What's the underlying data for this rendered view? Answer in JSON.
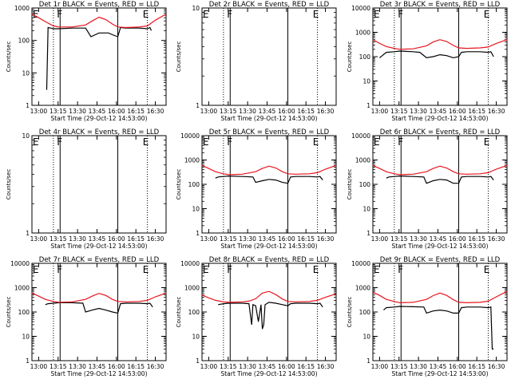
{
  "figure": {
    "x_tick_labels": [
      "13:00",
      "13:15",
      "13:30",
      "13:45",
      "16:00",
      "16:15",
      "16:30"
    ],
    "x_label": "Start Time (29-Oct-12 14:53:00)",
    "y_label": "Counts/sec",
    "colors": {
      "events": "#000000",
      "lld": "#e8141e",
      "axes": "#000000"
    }
  },
  "chart_data": [
    {
      "type": "line",
      "title": "Det 1r BLACK = Events, RED = LLD",
      "ylim": [
        1,
        1000
      ],
      "yticks": [
        1,
        10,
        100,
        1000
      ],
      "ytick_labels": [
        "1",
        "10",
        "100",
        "1000"
      ],
      "x_tick_labels": [
        "13:00",
        "13:15",
        "13:30",
        "13:45",
        "16:00",
        "16:15",
        "16:30"
      ],
      "xlabel": "Start Time (29-Oct-12 14:53:00)",
      "ylabel": "Counts/sec",
      "annotations": [
        {
          "text": "E",
          "x": 0.0
        },
        {
          "text": "F",
          "x": 0.18
        },
        {
          "text": "E",
          "x": 0.82
        }
      ],
      "vlines": {
        "dotted": [
          0.16,
          0.86
        ],
        "solid": [
          0.21,
          0.64
        ]
      },
      "series": [
        {
          "name": "Events",
          "color": "#000000",
          "x": [
            0.1,
            0.11,
            0.12,
            0.14,
            0.16,
            0.2,
            0.3,
            0.4,
            0.44,
            0.5,
            0.57,
            0.6,
            0.64,
            0.66,
            0.7,
            0.8,
            0.86,
            0.88,
            0.89
          ],
          "y": [
            null,
            3,
            250,
            240,
            230,
            230,
            240,
            240,
            130,
            170,
            170,
            150,
            130,
            250,
            240,
            240,
            230,
            250,
            200
          ]
        },
        {
          "name": "LLD",
          "color": "#e8141e",
          "x": [
            0.0,
            0.05,
            0.1,
            0.16,
            0.2,
            0.3,
            0.4,
            0.45,
            0.5,
            0.55,
            0.6,
            0.64,
            0.7,
            0.8,
            0.86,
            0.92,
            1.0
          ],
          "y": [
            650,
            500,
            380,
            280,
            260,
            260,
            300,
            400,
            520,
            440,
            320,
            260,
            250,
            260,
            280,
            420,
            650
          ]
        }
      ]
    },
    {
      "type": "line",
      "title": "Det 2r BLACK = Events, RED = LLD",
      "ylim": [
        1,
        10
      ],
      "yticks": [
        1,
        10
      ],
      "ytick_labels": [
        "1",
        "10"
      ],
      "x_tick_labels": [
        "13:00",
        "13:15",
        "13:30",
        "13:45",
        "16:00",
        "16:15",
        "16:30"
      ],
      "xlabel": "Start Time (29-Oct-12 14:53:00)",
      "ylabel": "Counts/sec",
      "annotations": [
        {
          "text": "E",
          "x": 0.0
        },
        {
          "text": "F",
          "x": 0.18
        },
        {
          "text": "E",
          "x": 0.82
        }
      ],
      "vlines": {
        "dotted": [
          0.16,
          0.86
        ],
        "solid": [
          0.21,
          0.64
        ]
      },
      "series": []
    },
    {
      "type": "line",
      "title": "Det 3r BLACK = Events, RED = LLD",
      "ylim": [
        1,
        10000
      ],
      "yticks": [
        1,
        10,
        100,
        1000,
        10000
      ],
      "ytick_labels": [
        "1",
        "10",
        "100",
        "1000",
        "10000"
      ],
      "x_tick_labels": [
        "13:00",
        "13:15",
        "13:30",
        "13:45",
        "16:00",
        "16:15",
        "16:30"
      ],
      "xlabel": "Start Time (29-Oct-12 14:53:00)",
      "ylabel": "Counts/sec",
      "annotations": [
        {
          "text": "E",
          "x": 0.0
        },
        {
          "text": "F",
          "x": 0.18
        },
        {
          "text": "E",
          "x": 0.82
        }
      ],
      "vlines": {
        "dotted": [
          0.16,
          0.86
        ],
        "solid": [
          0.21,
          0.64
        ]
      },
      "series": [
        {
          "name": "Events",
          "color": "#000000",
          "x": [
            0.05,
            0.07,
            0.1,
            0.16,
            0.2,
            0.3,
            0.35,
            0.4,
            0.45,
            0.5,
            0.55,
            0.6,
            0.64,
            0.66,
            0.7,
            0.8,
            0.86,
            0.88,
            0.9
          ],
          "y": [
            90,
            110,
            150,
            160,
            170,
            160,
            150,
            90,
            100,
            120,
            110,
            90,
            100,
            150,
            160,
            160,
            150,
            160,
            100
          ]
        },
        {
          "name": "LLD",
          "color": "#e8141e",
          "x": [
            0.0,
            0.05,
            0.1,
            0.16,
            0.2,
            0.3,
            0.4,
            0.45,
            0.5,
            0.55,
            0.6,
            0.64,
            0.7,
            0.8,
            0.86,
            0.92,
            1.0
          ],
          "y": [
            500,
            350,
            260,
            220,
            200,
            210,
            280,
            400,
            500,
            420,
            290,
            230,
            220,
            230,
            250,
            350,
            500
          ]
        }
      ]
    },
    {
      "type": "line",
      "title": "Det 4r BLACK = Events, RED = LLD",
      "ylim": [
        1,
        10
      ],
      "yticks": [
        1,
        10
      ],
      "ytick_labels": [
        "1",
        "10"
      ],
      "x_tick_labels": [
        "13:00",
        "13:15",
        "13:30",
        "13:45",
        "16:00",
        "16:15",
        "16:30"
      ],
      "xlabel": "Start Time (29-Oct-12 14:53:00)",
      "ylabel": "Counts/sec",
      "annotations": [
        {
          "text": "E",
          "x": 0.0
        },
        {
          "text": "F",
          "x": 0.18
        },
        {
          "text": "E",
          "x": 0.82
        }
      ],
      "vlines": {
        "dotted": [
          0.16,
          0.86
        ],
        "solid": [
          0.21,
          0.64
        ]
      },
      "series": []
    },
    {
      "type": "line",
      "title": "Det 5r BLACK = Events, RED = LLD",
      "ylim": [
        1,
        10000
      ],
      "yticks": [
        1,
        10,
        100,
        1000,
        10000
      ],
      "ytick_labels": [
        "1",
        "10",
        "100",
        "1000",
        "10000"
      ],
      "x_tick_labels": [
        "13:00",
        "13:15",
        "13:30",
        "13:45",
        "16:00",
        "16:15",
        "16:30"
      ],
      "xlabel": "Start Time (29-Oct-12 14:53:00)",
      "ylabel": "Counts/sec",
      "annotations": [
        {
          "text": "E",
          "x": 0.0
        },
        {
          "text": "F",
          "x": 0.18
        },
        {
          "text": "E",
          "x": 0.82
        }
      ],
      "vlines": {
        "dotted": [
          0.16,
          0.86
        ],
        "solid": [
          0.21,
          0.64
        ]
      },
      "series": [
        {
          "name": "Events",
          "color": "#000000",
          "x": [
            0.1,
            0.12,
            0.16,
            0.2,
            0.3,
            0.38,
            0.4,
            0.45,
            0.5,
            0.55,
            0.6,
            0.64,
            0.66,
            0.7,
            0.8,
            0.86,
            0.88,
            0.9
          ],
          "y": [
            180,
            200,
            210,
            220,
            210,
            200,
            120,
            140,
            160,
            150,
            120,
            110,
            200,
            210,
            210,
            200,
            210,
            150
          ]
        },
        {
          "name": "LLD",
          "color": "#e8141e",
          "x": [
            0.0,
            0.05,
            0.1,
            0.16,
            0.2,
            0.3,
            0.4,
            0.45,
            0.5,
            0.55,
            0.6,
            0.64,
            0.7,
            0.8,
            0.86,
            0.92,
            1.0
          ],
          "y": [
            600,
            450,
            330,
            270,
            250,
            260,
            330,
            450,
            560,
            470,
            330,
            270,
            260,
            270,
            300,
            420,
            600
          ]
        }
      ]
    },
    {
      "type": "line",
      "title": "Det 6r BLACK = Events, RED = LLD",
      "ylim": [
        1,
        10000
      ],
      "yticks": [
        1,
        10,
        100,
        1000,
        10000
      ],
      "ytick_labels": [
        "1",
        "10",
        "100",
        "1000",
        "10000"
      ],
      "x_tick_labels": [
        "13:00",
        "13:15",
        "13:30",
        "13:45",
        "16:00",
        "16:15",
        "16:30"
      ],
      "xlabel": "Start Time (29-Oct-12 14:53:00)",
      "ylabel": "Counts/sec",
      "annotations": [
        {
          "text": "E",
          "x": 0.0
        },
        {
          "text": "F",
          "x": 0.18
        },
        {
          "text": "E",
          "x": 0.82
        }
      ],
      "vlines": {
        "dotted": [
          0.16,
          0.86
        ],
        "solid": [
          0.21,
          0.64
        ]
      },
      "series": [
        {
          "name": "Events",
          "color": "#000000",
          "x": [
            0.1,
            0.12,
            0.16,
            0.2,
            0.3,
            0.38,
            0.4,
            0.45,
            0.5,
            0.55,
            0.6,
            0.64,
            0.66,
            0.7,
            0.8,
            0.86,
            0.88,
            0.9
          ],
          "y": [
            180,
            200,
            210,
            220,
            210,
            200,
            110,
            140,
            160,
            150,
            110,
            110,
            200,
            210,
            210,
            200,
            210,
            150
          ]
        },
        {
          "name": "LLD",
          "color": "#e8141e",
          "x": [
            0.0,
            0.05,
            0.1,
            0.16,
            0.2,
            0.3,
            0.4,
            0.45,
            0.5,
            0.55,
            0.6,
            0.64,
            0.7,
            0.8,
            0.86,
            0.92,
            1.0
          ],
          "y": [
            600,
            450,
            330,
            270,
            250,
            260,
            330,
            450,
            560,
            470,
            330,
            270,
            260,
            270,
            300,
            420,
            600
          ]
        }
      ]
    },
    {
      "type": "line",
      "title": "Det 7r BLACK = Events, RED = LLD",
      "ylim": [
        1,
        10000
      ],
      "yticks": [
        1,
        10,
        100,
        1000,
        10000
      ],
      "ytick_labels": [
        "1",
        "10",
        "100",
        "1000",
        "10000"
      ],
      "x_tick_labels": [
        "13:00",
        "13:15",
        "13:30",
        "13:45",
        "16:00",
        "16:15",
        "16:30"
      ],
      "xlabel": "Start Time (29-Oct-12 14:53:00)",
      "ylabel": "Counts/sec",
      "annotations": [
        {
          "text": "E",
          "x": 0.0
        },
        {
          "text": "F",
          "x": 0.18
        },
        {
          "text": "E",
          "x": 0.82
        }
      ],
      "vlines": {
        "dotted": [
          0.16,
          0.86
        ],
        "solid": [
          0.21,
          0.64
        ]
      },
      "series": [
        {
          "name": "Events",
          "color": "#000000",
          "x": [
            0.1,
            0.12,
            0.16,
            0.2,
            0.3,
            0.38,
            0.4,
            0.45,
            0.5,
            0.55,
            0.6,
            0.64,
            0.66,
            0.7,
            0.8,
            0.86,
            0.88,
            0.9
          ],
          "y": [
            200,
            220,
            230,
            240,
            240,
            230,
            100,
            120,
            140,
            120,
            100,
            90,
            220,
            230,
            230,
            220,
            230,
            160
          ]
        },
        {
          "name": "LLD",
          "color": "#e8141e",
          "x": [
            0.0,
            0.05,
            0.1,
            0.16,
            0.2,
            0.3,
            0.4,
            0.45,
            0.5,
            0.55,
            0.6,
            0.64,
            0.7,
            0.8,
            0.86,
            0.92,
            1.0
          ],
          "y": [
            600,
            450,
            330,
            270,
            250,
            260,
            330,
            450,
            580,
            480,
            330,
            270,
            260,
            270,
            300,
            420,
            600
          ]
        }
      ]
    },
    {
      "type": "line",
      "title": "Det 8r BLACK = Events, RED = LLD",
      "ylim": [
        1,
        10000
      ],
      "yticks": [
        1,
        10,
        100,
        1000,
        10000
      ],
      "ytick_labels": [
        "1",
        "10",
        "100",
        "1000",
        "10000"
      ],
      "x_tick_labels": [
        "13:00",
        "13:15",
        "13:30",
        "13:45",
        "16:00",
        "16:15",
        "16:30"
      ],
      "xlabel": "Start Time (29-Oct-12 14:53:00)",
      "ylabel": "Counts/sec",
      "annotations": [
        {
          "text": "E",
          "x": 0.0
        },
        {
          "text": "F",
          "x": 0.18
        },
        {
          "text": "E",
          "x": 0.82
        }
      ],
      "vlines": {
        "dotted": [
          0.16,
          0.86
        ],
        "solid": [
          0.21,
          0.64
        ]
      },
      "series": [
        {
          "name": "Events",
          "color": "#000000",
          "x": [
            0.12,
            0.16,
            0.2,
            0.3,
            0.35,
            0.37,
            0.38,
            0.4,
            0.42,
            0.44,
            0.45,
            0.46,
            0.47,
            0.5,
            0.55,
            0.6,
            0.64,
            0.66,
            0.7,
            0.8,
            0.86,
            0.88,
            0.9
          ],
          "y": [
            200,
            220,
            230,
            230,
            220,
            30,
            200,
            180,
            40,
            200,
            20,
            30,
            200,
            250,
            230,
            200,
            180,
            220,
            230,
            230,
            220,
            230,
            160
          ]
        },
        {
          "name": "LLD",
          "color": "#e8141e",
          "x": [
            0.0,
            0.05,
            0.1,
            0.16,
            0.2,
            0.3,
            0.35,
            0.4,
            0.45,
            0.5,
            0.55,
            0.6,
            0.64,
            0.7,
            0.8,
            0.86,
            0.92,
            1.0
          ],
          "y": [
            500,
            380,
            300,
            260,
            250,
            260,
            280,
            350,
            600,
            700,
            520,
            340,
            270,
            260,
            270,
            300,
            400,
            560
          ]
        }
      ]
    },
    {
      "type": "line",
      "title": "Det 9r BLACK = Events, RED = LLD",
      "ylim": [
        1,
        10000
      ],
      "yticks": [
        1,
        10,
        100,
        1000,
        10000
      ],
      "ytick_labels": [
        "1",
        "10",
        "100",
        "1000",
        "10000"
      ],
      "x_tick_labels": [
        "13:00",
        "13:15",
        "13:30",
        "13:45",
        "16:00",
        "16:15",
        "16:30"
      ],
      "xlabel": "Start Time (29-Oct-12 14:53:00)",
      "ylabel": "Counts/sec",
      "annotations": [
        {
          "text": "E",
          "x": 0.0
        },
        {
          "text": "F",
          "x": 0.18
        },
        {
          "text": "E",
          "x": 0.82
        }
      ],
      "vlines": {
        "dotted": [
          0.16,
          0.86
        ],
        "solid": [
          0.21,
          0.64
        ]
      },
      "series": [
        {
          "name": "Events",
          "color": "#000000",
          "x": [
            0.08,
            0.1,
            0.16,
            0.2,
            0.3,
            0.38,
            0.4,
            0.45,
            0.5,
            0.55,
            0.6,
            0.64,
            0.66,
            0.7,
            0.8,
            0.86,
            0.88,
            0.89,
            0.9
          ],
          "y": [
            120,
            150,
            160,
            170,
            165,
            160,
            90,
            110,
            120,
            110,
            90,
            90,
            150,
            160,
            160,
            150,
            160,
            3,
            3
          ]
        },
        {
          "name": "LLD",
          "color": "#e8141e",
          "x": [
            0.0,
            0.05,
            0.1,
            0.16,
            0.2,
            0.3,
            0.4,
            0.45,
            0.5,
            0.55,
            0.6,
            0.64,
            0.7,
            0.8,
            0.86,
            0.92,
            1.0
          ],
          "y": [
            650,
            480,
            330,
            270,
            240,
            250,
            330,
            470,
            600,
            480,
            320,
            250,
            240,
            250,
            280,
            420,
            700
          ]
        }
      ]
    }
  ]
}
